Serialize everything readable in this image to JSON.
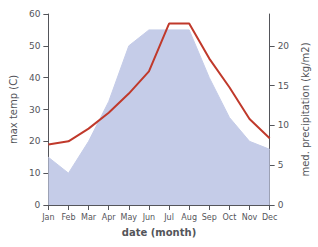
{
  "chart_data": {
    "type": "line",
    "xlabel": "date (month)",
    "ylabel": "max temp (C)",
    "y2label": "med. precipitation (kg/m2)",
    "categories": [
      "Jan",
      "Feb",
      "Mar",
      "Apr",
      "May",
      "Jun",
      "Jul",
      "Aug",
      "Sep",
      "Oct",
      "Nov",
      "Dec"
    ],
    "series": [
      {
        "type": "area",
        "axis": "y2",
        "color": "#c5cce8",
        "values": [
          6,
          4,
          8,
          13,
          20,
          22,
          22,
          22,
          16,
          11,
          8,
          7
        ]
      },
      {
        "type": "line",
        "color": "#c0392b",
        "values": [
          19,
          20,
          24,
          29,
          35,
          42,
          57,
          57,
          46,
          37,
          27,
          21
        ]
      }
    ],
    "ylim": [
      0,
      60
    ],
    "yticks": [
      0,
      10,
      20,
      30,
      40,
      50,
      60
    ],
    "y2lim": [
      0,
      24
    ],
    "y2ticks": [
      0,
      5,
      10,
      15,
      20
    ],
    "grid": false
  }
}
